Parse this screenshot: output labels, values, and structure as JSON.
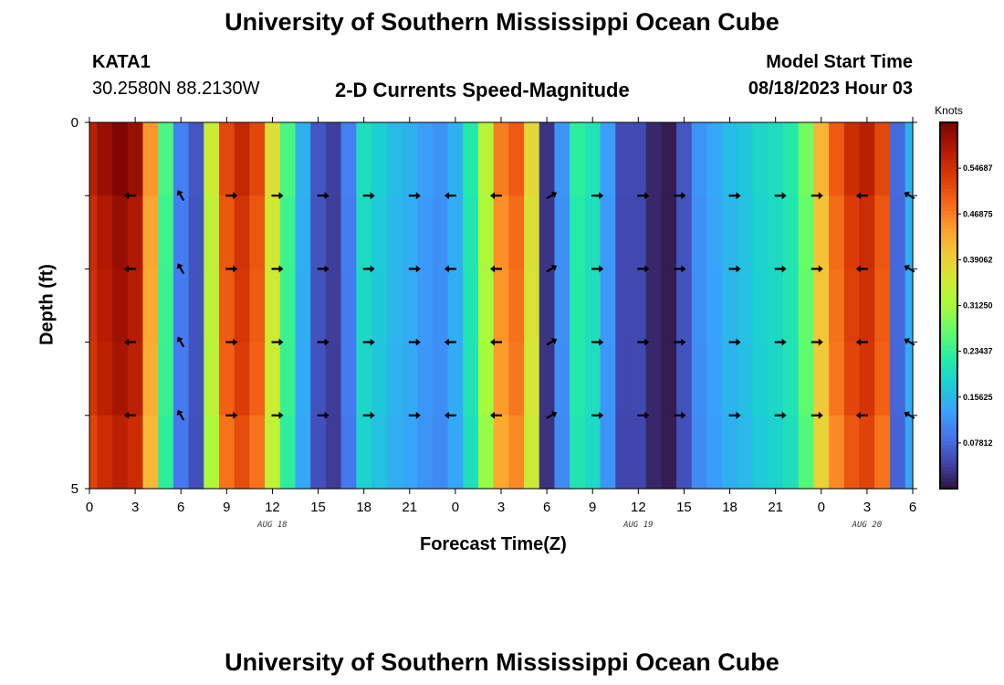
{
  "page": {
    "bottom_title": "University of Southern Mississippi Ocean Cube"
  },
  "chart_data": {
    "type": "heatmap",
    "title": "University of Southern Mississippi Ocean Cube",
    "station": "KATA1",
    "location": "30.2580N  88.2130W",
    "subtitle": "2-D Currents Speed-Magnitude",
    "model_label": "Model Start Time",
    "model_time": "08/18/2023 Hour 03",
    "xlabel": "Forecast Time(Z)",
    "ylabel": "Depth (ft)",
    "x_range_hours": [
      0,
      54
    ],
    "y_range": [
      0,
      5
    ],
    "x_ticks": [
      "0",
      "3",
      "6",
      "9",
      "12",
      "15",
      "18",
      "21",
      "0",
      "3",
      "6",
      "9",
      "12",
      "15",
      "18",
      "21",
      "0",
      "3",
      "6"
    ],
    "y_ticks": [
      "0",
      "5"
    ],
    "date_labels": [
      {
        "text": "AUG 18",
        "hour": 12
      },
      {
        "text": "AUG 19",
        "hour": 36
      },
      {
        "text": "AUG 20",
        "hour": 51
      }
    ],
    "colorbar": {
      "label": "Knots",
      "min": 0,
      "max": 0.625,
      "ticks": [
        "0.07812",
        "0.15625",
        "0.23437",
        "0.31250",
        "0.39062",
        "0.46875",
        "0.54687"
      ],
      "tick_values": [
        0.078125,
        0.15625,
        0.234375,
        0.3125,
        0.390625,
        0.46875,
        0.546875
      ],
      "colors": [
        "#30123b",
        "#4145ab",
        "#4675ed",
        "#39a2fc",
        "#1bcfd4",
        "#24eca6",
        "#61fc6c",
        "#a4fc3b",
        "#d1e834",
        "#f3c63a",
        "#fe9b2d",
        "#f36315",
        "#d93806",
        "#b11901",
        "#7a0403"
      ]
    },
    "speed_by_hour": [
      0.57,
      0.6,
      0.62,
      0.6,
      0.45,
      0.25,
      0.1,
      0.06,
      0.35,
      0.52,
      0.56,
      0.52,
      0.37,
      0.25,
      0.15,
      0.06,
      0.04,
      0.1,
      0.2,
      0.18,
      0.16,
      0.15,
      0.13,
      0.12,
      0.15,
      0.22,
      0.33,
      0.47,
      0.5,
      0.38,
      0.03,
      0.12,
      0.23,
      0.21,
      0.13,
      0.05,
      0.05,
      0.02,
      0.01,
      0.06,
      0.12,
      0.14,
      0.16,
      0.17,
      0.19,
      0.2,
      0.22,
      0.28,
      0.42,
      0.5,
      0.55,
      0.57,
      0.52,
      0.08,
      0.15
    ],
    "depth_factor": [
      1.0,
      0.97,
      0.96,
      0.95,
      0.92
    ],
    "arrows": {
      "hours": [
        2.7,
        6,
        9.3,
        12.3,
        15.3,
        18.3,
        21.3,
        23.7,
        26.7,
        30.3,
        33.3,
        36.3,
        38.7,
        42.3,
        45.3,
        47.7,
        50.7,
        53.8
      ],
      "depths": [
        1,
        2,
        3,
        4
      ],
      "angles_deg": [
        180,
        120,
        0,
        0,
        0,
        0,
        0,
        180,
        180,
        30,
        0,
        0,
        0,
        0,
        0,
        0,
        180,
        150
      ]
    }
  }
}
